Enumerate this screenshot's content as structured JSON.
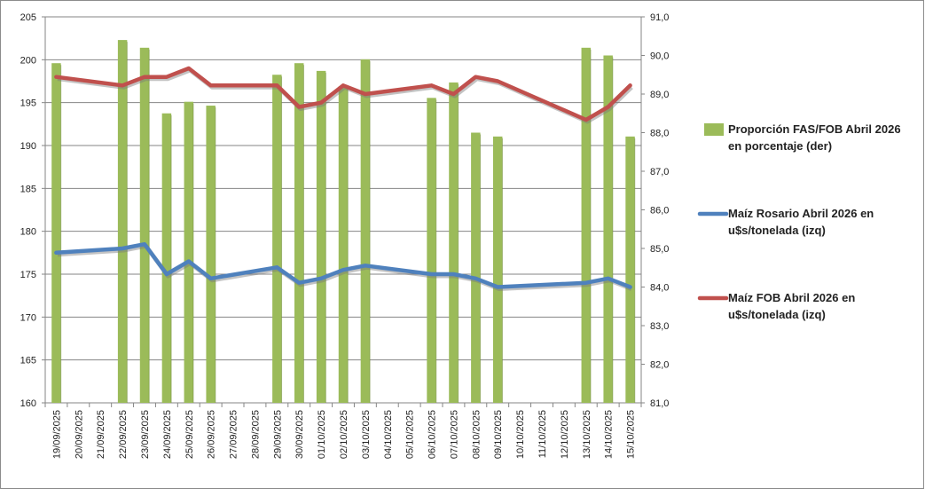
{
  "chart_data": {
    "type": "line",
    "categories": [
      "19/09/2025",
      "20/09/2025",
      "21/09/2025",
      "22/09/2025",
      "23/09/2025",
      "24/09/2025",
      "25/09/2025",
      "26/09/2025",
      "27/09/2025",
      "28/09/2025",
      "29/09/2025",
      "30/09/2025",
      "01/10/2025",
      "02/10/2025",
      "03/10/2025",
      "04/10/2025",
      "05/10/2025",
      "06/10/2025",
      "07/10/2025",
      "08/10/2025",
      "09/10/2025",
      "10/10/2025",
      "11/10/2025",
      "12/10/2025",
      "13/10/2025",
      "14/10/2025",
      "15/10/2025"
    ],
    "y_left": {
      "min": 160,
      "max": 205,
      "step": 5,
      "ticks": [
        "160",
        "165",
        "170",
        "175",
        "180",
        "185",
        "190",
        "195",
        "200",
        "205"
      ]
    },
    "y_right": {
      "min": 81,
      "max": 91,
      "step": 1,
      "ticks": [
        "81,0",
        "82,0",
        "83,0",
        "84,0",
        "85,0",
        "86,0",
        "87,0",
        "88,0",
        "89,0",
        "90,0",
        "91,0"
      ]
    },
    "grid": "horizontal",
    "legend_position": "right",
    "series": [
      {
        "name": "Proporción FAS/FOB Abril 2026 en porcentaje (der)",
        "legend_lines": [
          "Proporción FAS/FOB Abril 2026",
          "en porcentaje (der)"
        ],
        "type": "bar",
        "axis": "right",
        "color": "#9BBB59",
        "values": [
          89.8,
          null,
          null,
          90.4,
          90.2,
          88.5,
          88.8,
          88.7,
          null,
          null,
          89.5,
          89.8,
          89.6,
          89.2,
          89.9,
          null,
          null,
          88.9,
          89.3,
          88.0,
          87.9,
          null,
          null,
          null,
          90.2,
          90.0,
          87.9
        ]
      },
      {
        "name": "Maíz Rosario Abril 2026 en u$s/tonelada (izq)",
        "legend_lines": [
          "Maíz Rosario Abril 2026 en",
          "u$s/tonelada (izq)"
        ],
        "type": "line",
        "axis": "left",
        "color": "#4F81BD",
        "values": [
          177.5,
          null,
          null,
          178.0,
          178.5,
          175.0,
          176.5,
          174.5,
          null,
          null,
          175.8,
          174.0,
          174.5,
          175.5,
          176.0,
          null,
          null,
          175.0,
          175.0,
          174.5,
          173.5,
          null,
          null,
          null,
          174.0,
          174.5,
          173.5
        ]
      },
      {
        "name": "Maíz FOB Abril 2026 en u$s/tonelada (izq)",
        "legend_lines": [
          "Maíz FOB Abril 2026 en",
          "u$s/tonelada (izq)"
        ],
        "type": "line",
        "axis": "left",
        "color": "#C0504D",
        "values": [
          198.0,
          null,
          null,
          197.0,
          198.0,
          198.0,
          199.0,
          197.0,
          null,
          null,
          197.0,
          194.5,
          195.0,
          197.0,
          196.0,
          null,
          null,
          197.0,
          196.0,
          198.0,
          197.5,
          null,
          null,
          null,
          193.0,
          194.5,
          197.0
        ]
      }
    ]
  }
}
